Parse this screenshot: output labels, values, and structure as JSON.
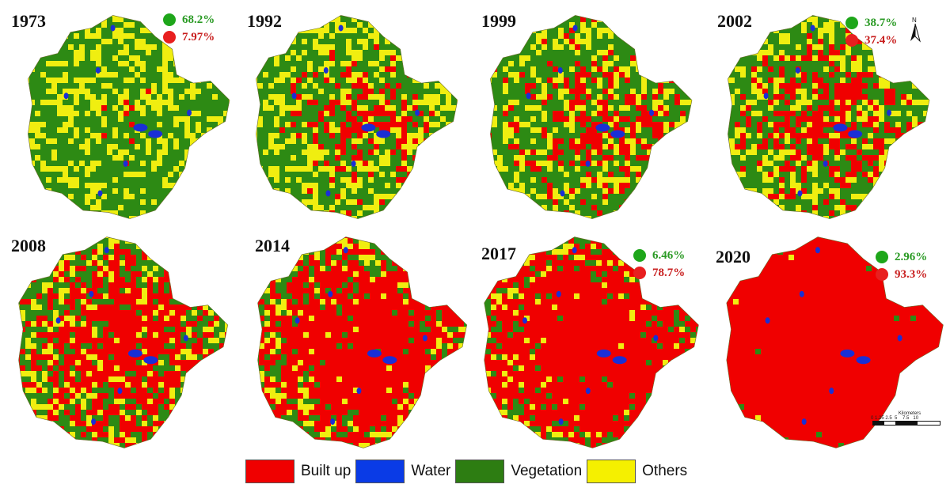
{
  "panels": [
    {
      "year": "1973",
      "vegetation_pct": "68.2%",
      "builtup_pct": "7.97%",
      "builtup_level": 0.1
    },
    {
      "year": "1992",
      "vegetation_pct": "",
      "builtup_pct": "",
      "builtup_level": 0.35
    },
    {
      "year": "1999",
      "vegetation_pct": "",
      "builtup_pct": "",
      "builtup_level": 0.42
    },
    {
      "year": "2002",
      "vegetation_pct": "38.7%",
      "builtup_pct": "37.4%",
      "builtup_level": 0.45
    },
    {
      "year": "2008",
      "vegetation_pct": "",
      "builtup_pct": "",
      "builtup_level": 0.6
    },
    {
      "year": "2014",
      "vegetation_pct": "",
      "builtup_pct": "",
      "builtup_level": 0.75
    },
    {
      "year": "2017",
      "vegetation_pct": "6.46%",
      "builtup_pct": "78.7%",
      "builtup_level": 0.82
    },
    {
      "year": "2020",
      "vegetation_pct": "2.96%",
      "builtup_pct": "93.3%",
      "builtup_level": 0.96
    }
  ],
  "legend": [
    {
      "label": "Built up",
      "color": "#f00000"
    },
    {
      "label": "Water",
      "color": "#0a3be6"
    },
    {
      "label": "Vegetation",
      "color": "#2d7d12"
    },
    {
      "label": "Others",
      "color": "#f5f000"
    }
  ],
  "colors": {
    "vegetation": "#2d8a14",
    "builtup": "#f00000",
    "water": "#1a2fd6",
    "others": "#f0ee10"
  },
  "north_label": "N",
  "scale": {
    "title": "Kilometers",
    "ticks": "0 1.25 2.5  5    7.5   10"
  }
}
